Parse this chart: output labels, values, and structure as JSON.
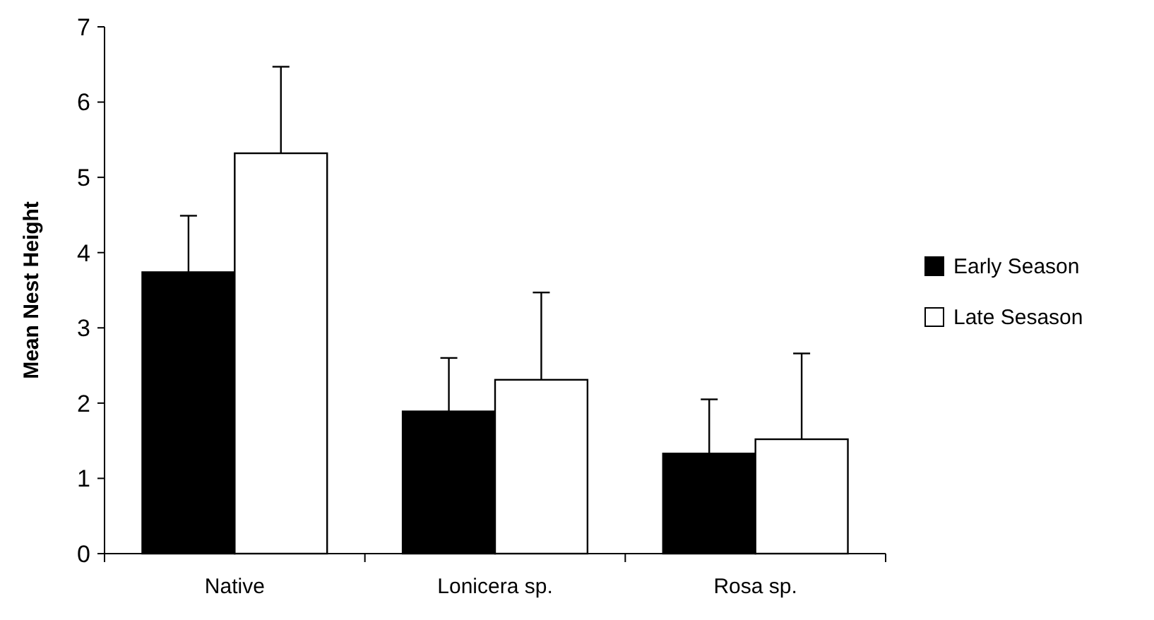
{
  "chart_data": {
    "type": "bar",
    "ylabel": "Mean Nest Height",
    "categories": [
      "Native",
      "Lonicera sp.",
      "Rosa sp."
    ],
    "series": [
      {
        "name": "Early Season",
        "color": "#000000",
        "values": [
          3.74,
          1.89,
          1.33
        ],
        "errors": [
          0.75,
          0.71,
          0.72
        ]
      },
      {
        "name": "Late Sesason",
        "color": "#ffffff",
        "values": [
          5.32,
          2.31,
          1.52
        ],
        "errors": [
          1.15,
          1.16,
          1.14
        ]
      }
    ],
    "ylim": [
      0,
      7
    ],
    "yticks": [
      0,
      1,
      2,
      3,
      4,
      5,
      6,
      7
    ],
    "legend": "right",
    "grid": false
  }
}
